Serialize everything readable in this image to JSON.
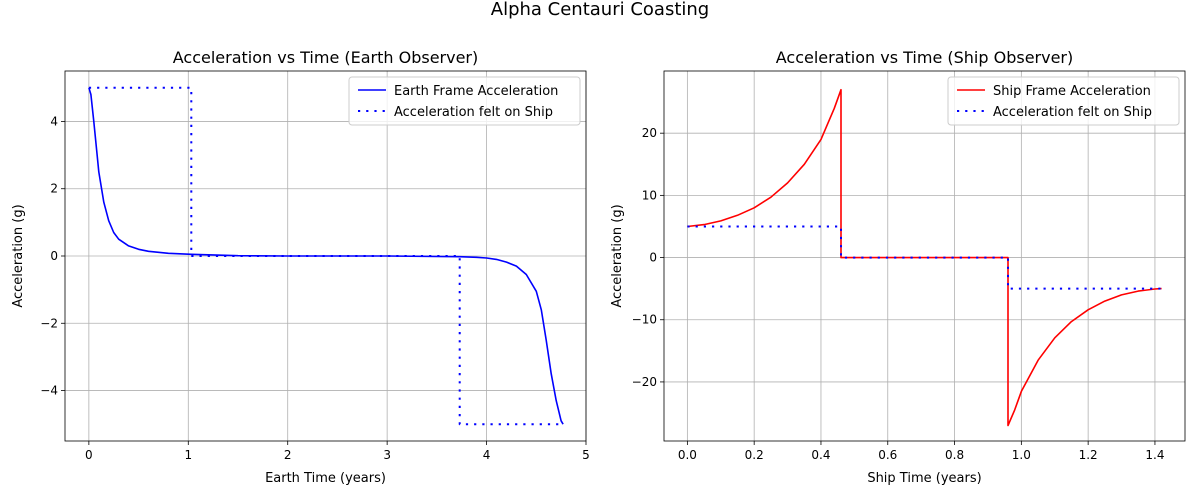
{
  "figure": {
    "title": "Alpha Centauri Coasting"
  },
  "chart_data": [
    {
      "type": "line",
      "title": "Acceleration vs Time (Earth Observer)",
      "xlabel": "Earth Time (years)",
      "ylabel": "Acceleration (g)",
      "xlim": [
        -0.24,
        5.0
      ],
      "ylim": [
        -5.5,
        5.5
      ],
      "xticks": [
        0,
        1,
        2,
        3,
        4,
        5
      ],
      "yticks": [
        -4,
        -2,
        0,
        2,
        4
      ],
      "xtick_labels": [
        "0",
        "1",
        "2",
        "3",
        "4",
        "5"
      ],
      "ytick_labels": [
        "−4",
        "−2",
        "0",
        "2",
        "4"
      ],
      "grid": true,
      "legend_position": "upper right",
      "series": [
        {
          "name": "Earth Frame Acceleration",
          "color": "#0000ff",
          "style": "solid",
          "x": [
            0,
            0.02,
            0.05,
            0.08,
            0.1,
            0.15,
            0.2,
            0.25,
            0.3,
            0.4,
            0.5,
            0.6,
            0.8,
            1.03,
            1.5,
            2.0,
            3.0,
            3.73,
            3.9,
            4.0,
            4.1,
            4.2,
            4.3,
            4.4,
            4.5,
            4.55,
            4.6,
            4.65,
            4.7,
            4.75,
            4.77
          ],
          "y": [
            5.0,
            4.8,
            4.0,
            3.1,
            2.5,
            1.6,
            1.05,
            0.7,
            0.5,
            0.3,
            0.2,
            0.14,
            0.08,
            0.05,
            0.01,
            0.0,
            0.0,
            -0.02,
            -0.04,
            -0.06,
            -0.1,
            -0.18,
            -0.3,
            -0.55,
            -1.05,
            -1.6,
            -2.5,
            -3.5,
            -4.3,
            -4.9,
            -5.0
          ]
        },
        {
          "name": "Acceleration felt on Ship",
          "color": "#0000ff",
          "style": "dotted",
          "x": [
            0,
            1.03,
            1.03,
            3.73,
            3.73,
            4.77
          ],
          "y": [
            5.0,
            5.0,
            0.0,
            0.0,
            -5.0,
            -5.0
          ]
        }
      ]
    },
    {
      "type": "line",
      "title": "Acceleration vs Time (Ship Observer)",
      "xlabel": "Ship Time (years)",
      "ylabel": "Acceleration (g)",
      "xlim": [
        -0.07,
        1.49
      ],
      "ylim": [
        -29.5,
        30.0
      ],
      "xticks": [
        0.0,
        0.2,
        0.4,
        0.6,
        0.8,
        1.0,
        1.2,
        1.4
      ],
      "yticks": [
        -20,
        -10,
        0,
        10,
        20
      ],
      "xtick_labels": [
        "0.0",
        "0.2",
        "0.4",
        "0.6",
        "0.8",
        "1.0",
        "1.2",
        "1.4"
      ],
      "ytick_labels": [
        "−20",
        "−10",
        "0",
        "10",
        "20"
      ],
      "grid": true,
      "legend_position": "upper right",
      "series": [
        {
          "name": "Ship Frame Acceleration",
          "color": "#ff0000",
          "style": "solid",
          "x": [
            0.0,
            0.05,
            0.1,
            0.15,
            0.2,
            0.25,
            0.3,
            0.35,
            0.4,
            0.44,
            0.46,
            0.46,
            0.96,
            0.96,
            0.98,
            1.0,
            1.05,
            1.1,
            1.15,
            1.2,
            1.25,
            1.3,
            1.35,
            1.4,
            1.42
          ],
          "y": [
            5.0,
            5.3,
            5.9,
            6.8,
            8.0,
            9.7,
            12.0,
            15.0,
            19.0,
            24.0,
            27.0,
            0.0,
            0.0,
            -27.0,
            -24.5,
            -21.5,
            -16.5,
            -12.9,
            -10.3,
            -8.4,
            -7.0,
            -6.0,
            -5.4,
            -5.05,
            -5.0
          ]
        },
        {
          "name": "Acceleration felt on Ship",
          "color": "#0000ff",
          "style": "dotted",
          "x": [
            0.0,
            0.46,
            0.46,
            0.96,
            0.96,
            1.42
          ],
          "y": [
            5.0,
            5.0,
            0.0,
            0.0,
            -5.0,
            -5.0
          ]
        }
      ]
    }
  ]
}
